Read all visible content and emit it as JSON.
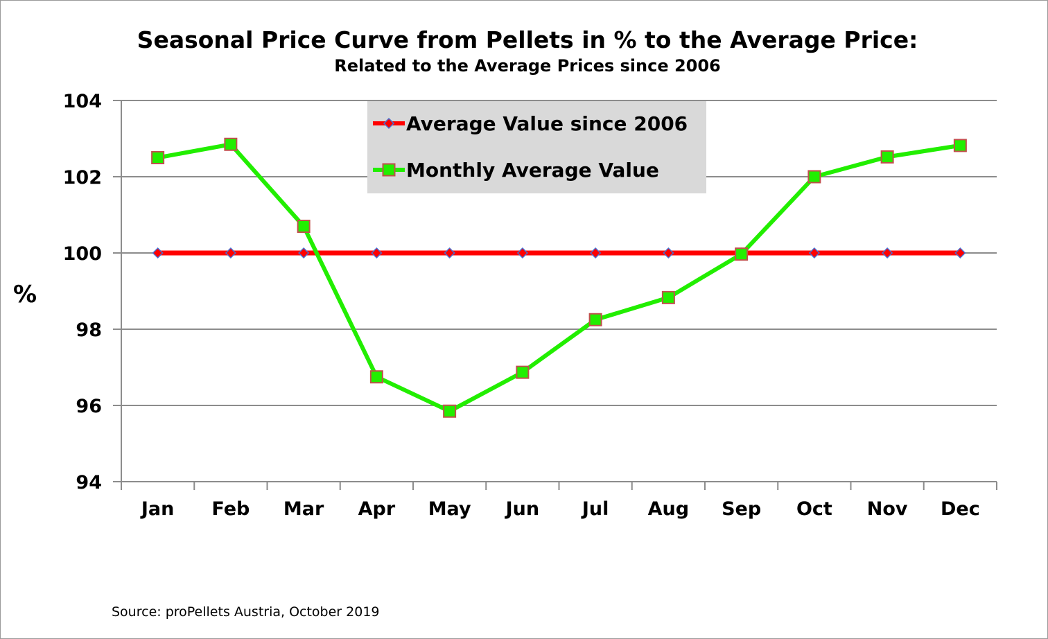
{
  "chart_data": {
    "type": "line",
    "title": "Seasonal Price Curve from Pellets in % to the Average Price:",
    "subtitle": "Related to the Average Prices since 2006",
    "ylabel": "%",
    "xlabel": "",
    "categories": [
      "Jan",
      "Feb",
      "Mar",
      "Apr",
      "May",
      "Jun",
      "Jul",
      "Aug",
      "Sep",
      "Oct",
      "Nov",
      "Dec"
    ],
    "ylim": [
      94,
      104
    ],
    "yticks": [
      "94",
      "96",
      "98",
      "100",
      "102",
      "104"
    ],
    "grid": true,
    "legend_position": "top-center",
    "series": [
      {
        "name": "Average Value since 2006",
        "color": "#ff0000",
        "marker": "diamond",
        "marker_color": "#4a6fd0",
        "values": [
          100,
          100,
          100,
          100,
          100,
          100,
          100,
          100,
          100,
          100,
          100,
          100
        ]
      },
      {
        "name": "Monthly Average Value",
        "color": "#22ee00",
        "marker": "square",
        "marker_color": "#c0504d",
        "values": [
          102.5,
          102.85,
          100.7,
          96.75,
          95.85,
          96.87,
          98.25,
          98.83,
          99.97,
          102.0,
          102.52,
          102.82
        ]
      }
    ],
    "legend_background": "#d9d9d9",
    "grid_color": "#8c8c8c",
    "source": "Source: proPellets Austria, October 2019"
  }
}
